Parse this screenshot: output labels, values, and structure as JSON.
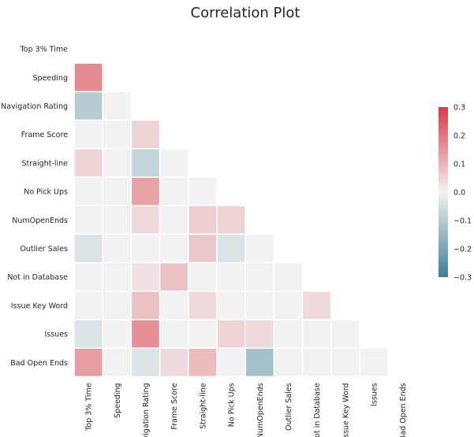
{
  "chart_data": {
    "type": "heatmap",
    "title": "Correlation Plot",
    "variables": [
      "Top 3% Time",
      "Speeding",
      "Navigation Rating",
      "Frame Score",
      "Straight-line",
      "No Pick Ups",
      "NumOpenEnds",
      "Outlier Sales",
      "Not in Database",
      "Issue Key Word",
      "Issues",
      "Bad Open Ends"
    ],
    "mask": "upper-triangle-including-diagonal",
    "values": [
      [
        null,
        null,
        null,
        null,
        null,
        null,
        null,
        null,
        null,
        null,
        null,
        null
      ],
      [
        0.17,
        null,
        null,
        null,
        null,
        null,
        null,
        null,
        null,
        null,
        null,
        null
      ],
      [
        -0.1,
        0.0,
        null,
        null,
        null,
        null,
        null,
        null,
        null,
        null,
        null,
        null
      ],
      [
        0.0,
        0.0,
        0.05,
        null,
        null,
        null,
        null,
        null,
        null,
        null,
        null,
        null
      ],
      [
        0.05,
        0.0,
        -0.08,
        0.0,
        null,
        null,
        null,
        null,
        null,
        null,
        null,
        null
      ],
      [
        0.0,
        0.0,
        0.13,
        0.0,
        0.0,
        null,
        null,
        null,
        null,
        null,
        null,
        null
      ],
      [
        0.0,
        0.0,
        0.04,
        0.0,
        0.06,
        0.05,
        null,
        null,
        null,
        null,
        null,
        null
      ],
      [
        -0.04,
        0.0,
        0.0,
        0.0,
        0.07,
        -0.04,
        0.0,
        null,
        null,
        null,
        null,
        null
      ],
      [
        0.0,
        0.0,
        0.03,
        0.08,
        0.0,
        0.0,
        0.0,
        0.0,
        null,
        null,
        null,
        null
      ],
      [
        0.0,
        0.0,
        0.08,
        0.0,
        0.04,
        0.0,
        0.0,
        0.0,
        0.04,
        null,
        null,
        null
      ],
      [
        -0.04,
        0.0,
        0.16,
        0.0,
        0.0,
        0.05,
        0.04,
        0.0,
        0.0,
        0.0,
        null,
        null
      ],
      [
        0.14,
        0.0,
        -0.04,
        0.04,
        0.09,
        0.0,
        -0.13,
        0.0,
        0.0,
        0.0,
        0.0,
        null
      ]
    ],
    "colorbar": {
      "min": -0.3,
      "max": 0.3,
      "ticks": [
        "0.3",
        "0.2",
        "0.1",
        "0.0",
        "−0.1",
        "−0.2",
        "−0.3"
      ],
      "tick_values": [
        0.3,
        0.2,
        0.1,
        0.0,
        -0.1,
        -0.2,
        -0.3
      ],
      "colors": {
        "negative": "#3f7f93",
        "neutral": "#f2f2f2",
        "positive": "#da3b46"
      }
    },
    "grid": false
  }
}
